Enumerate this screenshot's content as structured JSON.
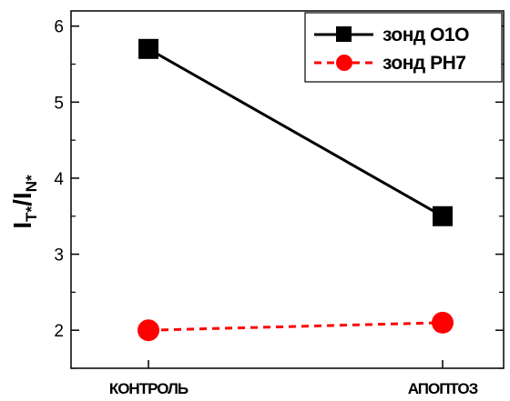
{
  "chart_data": {
    "type": "line",
    "categories": [
      "КОНТРОЛЬ",
      "АПОПТОЗ"
    ],
    "series": [
      {
        "name": "зонд О1О",
        "values": [
          5.7,
          3.5
        ],
        "color": "#000000",
        "marker": "square",
        "line_style": "solid"
      },
      {
        "name": "зонд PH7",
        "values": [
          2.0,
          2.1
        ],
        "color": "#ff0000",
        "marker": "circle",
        "line_style": "dashed"
      }
    ],
    "ylabel": {
      "main1": "I",
      "sub1": "T*",
      "slash": "/",
      "main2": "I",
      "sub2": "N*"
    },
    "ylim": [
      1.5,
      6.2
    ],
    "yticks": [
      "2",
      "3",
      "4",
      "5",
      "6"
    ],
    "legend_position": "top-right",
    "grid": false
  }
}
